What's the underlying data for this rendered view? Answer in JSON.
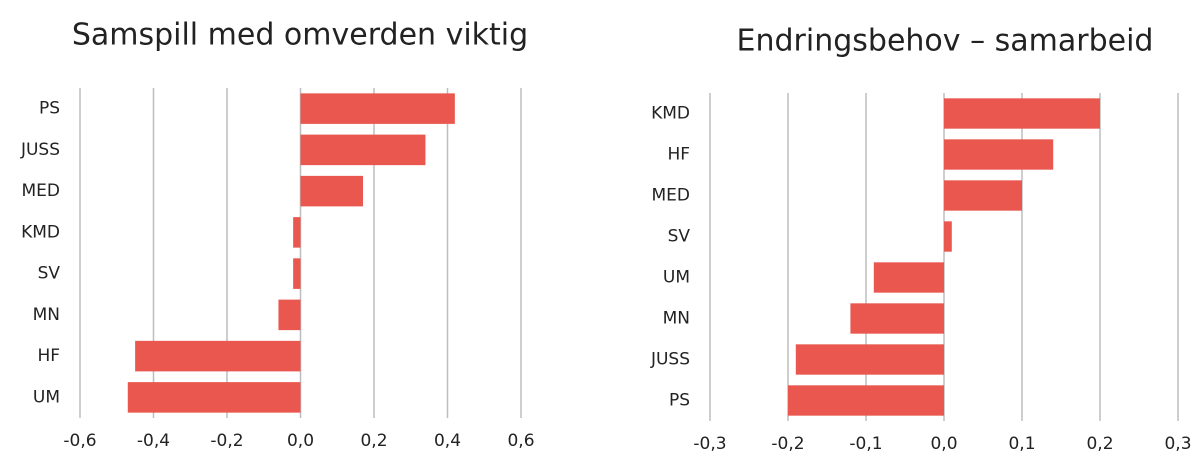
{
  "chart_data": [
    {
      "type": "bar",
      "orientation": "horizontal",
      "title": "Samspill med omverden viktig",
      "categories": [
        "PS",
        "JUSS",
        "MED",
        "KMD",
        "SV",
        "MN",
        "HF",
        "UM"
      ],
      "values": [
        0.42,
        0.34,
        0.17,
        -0.02,
        -0.02,
        -0.06,
        -0.45,
        -0.47
      ],
      "color": "#e9574f",
      "xlim": [
        -0.6,
        0.6
      ],
      "xticks": [
        {
          "value": -0.6,
          "label": "-0,6"
        },
        {
          "value": -0.4,
          "label": "-0,4"
        },
        {
          "value": -0.2,
          "label": "-0,2"
        },
        {
          "value": 0,
          "label": "0,0"
        },
        {
          "value": 0.2,
          "label": "0,2"
        },
        {
          "value": 0.4,
          "label": "0,4"
        },
        {
          "value": 0.6,
          "label": "0,6"
        }
      ],
      "grid": true
    },
    {
      "type": "bar",
      "orientation": "horizontal",
      "title": "Endringsbehov – samarbeid",
      "categories": [
        "KMD",
        "HF",
        "MED",
        "SV",
        "UM",
        "MN",
        "JUSS",
        "PS"
      ],
      "values": [
        0.2,
        0.14,
        0.1,
        0.01,
        -0.09,
        -0.12,
        -0.19,
        -0.2
      ],
      "color": "#e9574f",
      "xlim": [
        -0.3,
        0.3
      ],
      "xticks": [
        {
          "value": -0.3,
          "label": "-0,3"
        },
        {
          "value": -0.2,
          "label": "-0,2"
        },
        {
          "value": -0.1,
          "label": "-0,1"
        },
        {
          "value": 0,
          "label": "0,0"
        },
        {
          "value": 0.1,
          "label": "0,1"
        },
        {
          "value": 0.2,
          "label": "0,2"
        },
        {
          "value": 0.3,
          "label": "0,3"
        }
      ],
      "grid": true
    }
  ]
}
